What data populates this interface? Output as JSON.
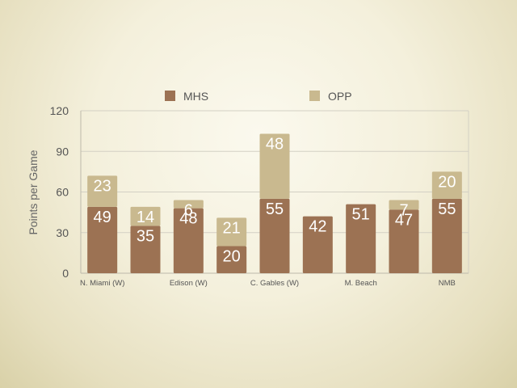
{
  "chart_data": {
    "type": "bar",
    "stacked": true,
    "title": "",
    "ylabel": "Points per Game",
    "xlabel": "",
    "ylim": [
      0,
      120
    ],
    "yticks": [
      0,
      30,
      60,
      90,
      120
    ],
    "grid": true,
    "legend_position": "top",
    "categories": [
      "N. Miami (W)",
      "",
      "Edison (W)",
      "",
      "C. Gables (W)",
      "",
      "M. Beach",
      "",
      "NMB"
    ],
    "series": [
      {
        "name": "MHS",
        "color": "#9c7253",
        "values": [
          49,
          35,
          48,
          20,
          55,
          42,
          51,
          47,
          55
        ]
      },
      {
        "name": "OPP",
        "color": "#c9b98f",
        "values": [
          23,
          14,
          6,
          21,
          48,
          null,
          null,
          7,
          20
        ]
      }
    ]
  }
}
